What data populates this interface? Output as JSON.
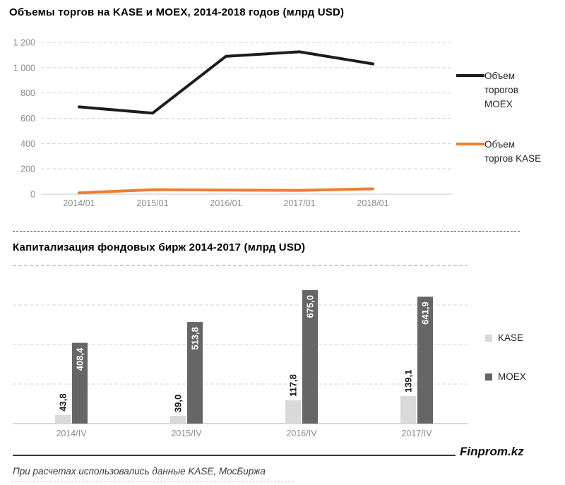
{
  "chart_data": [
    {
      "type": "line",
      "title": "Объемы торгов на KASE и MOEX, 2014-2018 годов (млрд USD)",
      "categories": [
        "2014/01",
        "2015/01",
        "2016/01",
        "2017/01",
        "2018/01"
      ],
      "series": [
        {
          "name": "Объем торогов MOEX",
          "color": "#1c1c1c",
          "values": [
            690,
            640,
            1090,
            1125,
            1030
          ]
        },
        {
          "name": "Объем торгов KASE",
          "color": "#ED7D31",
          "values": [
            10,
            35,
            32,
            30,
            42
          ]
        }
      ],
      "ylim": [
        0,
        1200
      ],
      "yticks": [
        [
          1200,
          "1 200"
        ],
        [
          1000,
          "1 000"
        ],
        [
          800,
          "800"
        ],
        [
          600,
          "600"
        ],
        [
          400,
          "400"
        ],
        [
          200,
          "200"
        ],
        [
          0,
          "0"
        ]
      ],
      "grid": "dashed horizontal",
      "legend_position": "right"
    },
    {
      "type": "bar",
      "title": "Капитализация фондовых бирж 2014-2017  (млрд USD)",
      "categories": [
        "2014/IV",
        "2015/IV",
        "2016/IV",
        "2017/IV"
      ],
      "series": [
        {
          "name": "KASE",
          "color": "#d9d9d9",
          "values": [
            43.8,
            39.0,
            117.8,
            139.1
          ],
          "labels": [
            "43,8",
            "39,0",
            "117,8",
            "139,1"
          ],
          "label_color": "#1a1a1a",
          "label_placement": "outside-rotated"
        },
        {
          "name": "MOEX",
          "color": "#666666",
          "values": [
            408.4,
            513.8,
            675.0,
            641.9
          ],
          "labels": [
            "408,4",
            "513,8",
            "675,0",
            "641,9"
          ],
          "label_color": "#ffffff",
          "label_placement": "inside-rotated"
        }
      ],
      "ylim": [
        0,
        800
      ],
      "grid_values": [
        200,
        400,
        600,
        800
      ],
      "grid": "dashed horizontal, no y-axis labels",
      "legend_position": "right"
    }
  ],
  "footer": {
    "brand": "Finprom.kz",
    "note": "При расчетах использовались данные KASE,  МосБиржа"
  },
  "colors": {
    "moex_line": "#1c1c1c",
    "kase_line": "#ED7D31",
    "kase_bar": "#d9d9d9",
    "moex_bar": "#666666",
    "tick_text": "#8c8c8c",
    "gridline": "#d4d4d4"
  }
}
